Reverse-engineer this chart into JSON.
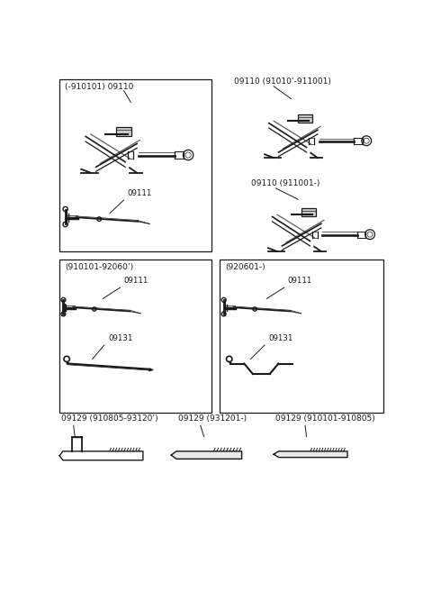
{
  "bg_color": "#ffffff",
  "line_color": "#1a1a1a",
  "font_size_label": 6.5,
  "font_size_partnum": 6.2,
  "sections": {
    "box1_label": "(-910101) 09110",
    "box1_sub": "09111",
    "box2_top_label": "09110 (91010’-911001)",
    "box2_mid_label": "09110 (911001-)",
    "box3_label": "(910101-92060’)",
    "box3_part1": "09111",
    "box3_part2": "09131",
    "box4_label": "(920601-)",
    "box4_part1": "09111",
    "box4_part2": "09131",
    "bottom1_label": "09129 (910805-93120’)",
    "bottom2_label": "09129 (931201-)",
    "bottom3_label": "09129 (910101-910805)"
  }
}
